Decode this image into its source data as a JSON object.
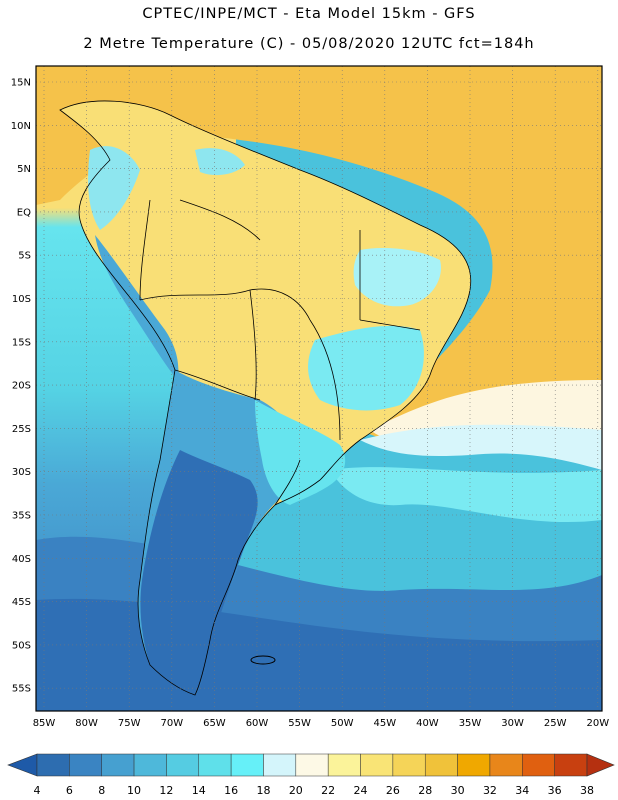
{
  "header": {
    "line1": "CPTEC/INPE/MCT -  Eta Model 15km - GFS",
    "line2": "2 Metre Temperature (C) - 05/08/2020 12UTC fct=184h"
  },
  "map": {
    "region": "South America",
    "lat_labels": [
      "15N",
      "10N",
      "5N",
      "EQ",
      "5S",
      "10S",
      "15S",
      "20S",
      "25S",
      "30S",
      "35S",
      "40S",
      "45S",
      "50S",
      "55S"
    ],
    "lon_labels": [
      "85W",
      "80W",
      "75W",
      "70W",
      "65W",
      "60W",
      "55W",
      "50W",
      "45W",
      "40W",
      "35W",
      "30W",
      "25W",
      "20W"
    ],
    "field_colors": {
      "cold_south": "#2f6fb5",
      "cool": "#4aa8d6",
      "mild_ocean": "#55dbe8",
      "light_cyan": "#8ff0f5",
      "pale": "#d7f6fb",
      "warm_land": "#f9df76",
      "hot": "#f5c24a"
    }
  },
  "colorbar": {
    "labels": [
      "4",
      "6",
      "8",
      "10",
      "12",
      "14",
      "16",
      "18",
      "20",
      "22",
      "24",
      "26",
      "28",
      "30",
      "32",
      "34",
      "36",
      "38"
    ],
    "colors": [
      "#2d6db0",
      "#3a84c2",
      "#46a0d0",
      "#4eb8da",
      "#55cce2",
      "#5fe0ea",
      "#66f0f8",
      "#d4f5fb",
      "#fdf9e6",
      "#fbf39a",
      "#f9e476",
      "#f5d458",
      "#f0c23a",
      "#f0a800",
      "#e8861a",
      "#e06010",
      "#c84010"
    ],
    "under_color": "#1e5aa8",
    "over_color": "#b53010"
  }
}
